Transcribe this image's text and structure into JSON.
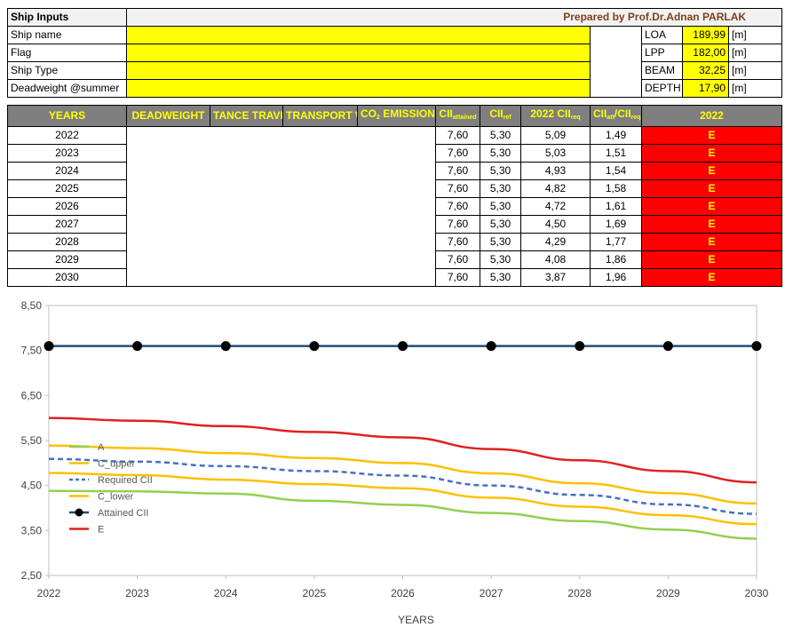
{
  "inputs": {
    "title": "Ship Inputs",
    "prepared_by": "Prepared by Prof.Dr.Adnan PARLAK",
    "fields": [
      "Ship name",
      "Flag",
      "Ship Type",
      "Deadweight @summer"
    ],
    "dims": [
      {
        "name": "LOA",
        "value": "189,99",
        "unit": "[m]"
      },
      {
        "name": "LPP",
        "value": "182,00",
        "unit": "[m]"
      },
      {
        "name": "BEAM",
        "value": "32,25",
        "unit": "[m]"
      },
      {
        "name": "DEPTH",
        "value": "17,90",
        "unit": "[m]"
      }
    ]
  },
  "table": {
    "headers": {
      "years": "YEARS",
      "deadweight": "DEADWEIGHT",
      "distance": "TANCE TRAVELLED",
      "transport": "TRANSPORT WORK",
      "co2_main": "CO",
      "co2_sub": "2",
      "co2_rest": " EMISSION",
      "cii_att_main": "CII",
      "cii_att_sub": "attained",
      "cii_ref_main": "CII",
      "cii_ref_sub": "ref",
      "cii_req_main": "2022 CII",
      "cii_req_sub": "req",
      "ratio_main1": "CII",
      "ratio_sub1": "att",
      "ratio_main2": "/CII",
      "ratio_sub2": "req",
      "rating": "2022"
    },
    "rows": [
      {
        "year": "2022",
        "att": "7,60",
        "ref": "5,30",
        "req": "5,09",
        "ratio": "1,49",
        "rating": "E"
      },
      {
        "year": "2023",
        "att": "7,60",
        "ref": "5,30",
        "req": "5,03",
        "ratio": "1,51",
        "rating": "E"
      },
      {
        "year": "2024",
        "att": "7,60",
        "ref": "5,30",
        "req": "4,93",
        "ratio": "1,54",
        "rating": "E"
      },
      {
        "year": "2025",
        "att": "7,60",
        "ref": "5,30",
        "req": "4,82",
        "ratio": "1,58",
        "rating": "E"
      },
      {
        "year": "2026",
        "att": "7,60",
        "ref": "5,30",
        "req": "4,72",
        "ratio": "1,61",
        "rating": "E"
      },
      {
        "year": "2027",
        "att": "7,60",
        "ref": "5,30",
        "req": "4,50",
        "ratio": "1,69",
        "rating": "E"
      },
      {
        "year": "2028",
        "att": "7,60",
        "ref": "5,30",
        "req": "4,29",
        "ratio": "1,77",
        "rating": "E"
      },
      {
        "year": "2029",
        "att": "7,60",
        "ref": "5,30",
        "req": "4,08",
        "ratio": "1,86",
        "rating": "E"
      },
      {
        "year": "2030",
        "att": "7,60",
        "ref": "5,30",
        "req": "3,87",
        "ratio": "1,96",
        "rating": "E"
      }
    ]
  },
  "chart_data": {
    "type": "line",
    "xlabel": "YEARS",
    "x": [
      2022,
      2023,
      2024,
      2025,
      2026,
      2027,
      2028,
      2029,
      2030
    ],
    "x_tick_labels": [
      "2022",
      "2023",
      "2024",
      "2025",
      "2026",
      "2027",
      "2028",
      "2029",
      "2030"
    ],
    "ylim": [
      2.5,
      8.5
    ],
    "y_ticks": [
      2.5,
      3.5,
      4.5,
      5.5,
      6.5,
      7.5,
      8.5
    ],
    "y_tick_labels": [
      "2,50",
      "3,50",
      "4,50",
      "5,50",
      "6,50",
      "7,50",
      "8,50"
    ],
    "grid": false,
    "legend_position": "left",
    "series": [
      {
        "name": "A",
        "color": "#92d050",
        "dash": "",
        "marker": false,
        "values": [
          4.38,
          4.37,
          4.32,
          4.16,
          4.07,
          3.89,
          3.71,
          3.52,
          3.32
        ]
      },
      {
        "name": "C_upper",
        "color": "#ffc000",
        "dash": "",
        "marker": false,
        "values": [
          5.39,
          5.33,
          5.22,
          5.11,
          5.0,
          4.77,
          4.55,
          4.33,
          4.1
        ]
      },
      {
        "name": "Required CII",
        "color": "#4472c4",
        "dash": "6,4",
        "marker": false,
        "values": [
          5.09,
          5.03,
          4.93,
          4.82,
          4.72,
          4.5,
          4.29,
          4.08,
          3.87
        ]
      },
      {
        "name": "C_lower",
        "color": "#ffc000",
        "dash": "",
        "marker": false,
        "values": [
          4.78,
          4.73,
          4.63,
          4.53,
          4.44,
          4.23,
          4.03,
          3.84,
          3.64
        ]
      },
      {
        "name": "Attained CII",
        "color": "#1f4e79",
        "dash": "",
        "marker": true,
        "values": [
          7.6,
          7.6,
          7.6,
          7.6,
          7.6,
          7.6,
          7.6,
          7.6,
          7.6
        ]
      },
      {
        "name": "E",
        "color": "#e02020",
        "dash": "",
        "marker": false,
        "values": [
          6.0,
          5.94,
          5.82,
          5.69,
          5.57,
          5.31,
          5.06,
          4.82,
          4.57
        ]
      }
    ]
  }
}
